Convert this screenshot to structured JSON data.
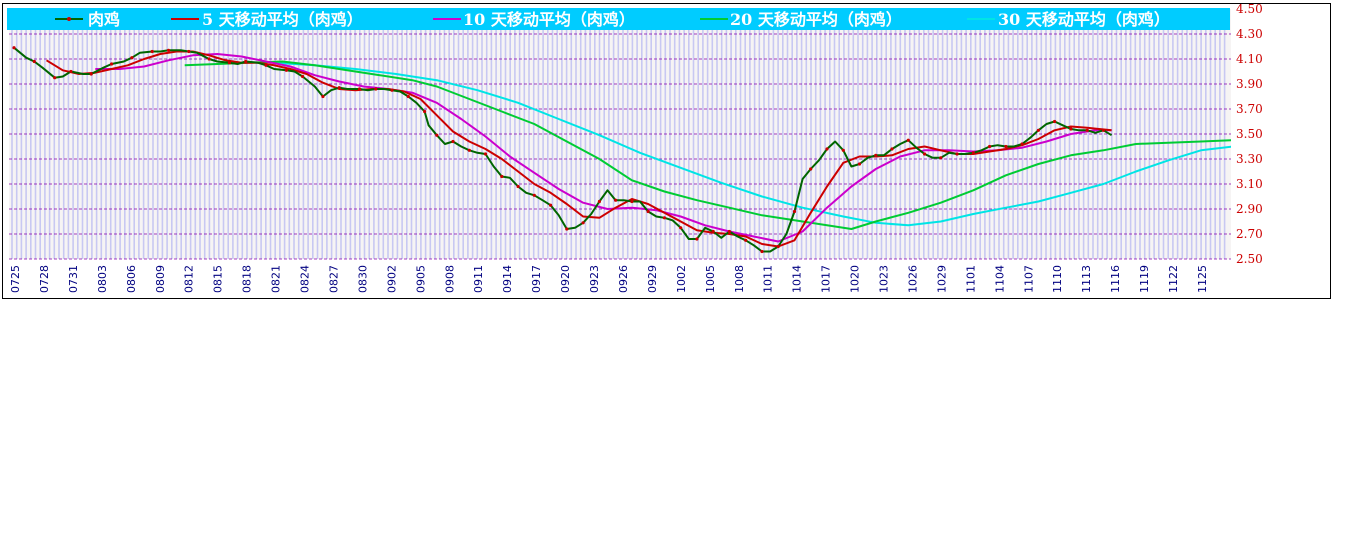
{
  "chart_data": {
    "type": "line",
    "title": "",
    "xlabel": "",
    "ylabel": "",
    "ylim": [
      2.5,
      4.5
    ],
    "yticks": [
      "4.50",
      "4.30",
      "4.10",
      "3.90",
      "3.70",
      "3.50",
      "3.30",
      "3.10",
      "2.90",
      "2.70",
      "2.50"
    ],
    "xticks": [
      "0725",
      "0728",
      "0731",
      "0803",
      "0806",
      "0809",
      "0812",
      "0815",
      "0818",
      "0821",
      "0824",
      "0827",
      "0830",
      "0902",
      "0905",
      "0908",
      "0911",
      "0914",
      "0917",
      "0920",
      "0923",
      "0926",
      "0929",
      "1002",
      "1005",
      "1008",
      "1011",
      "1014",
      "1017",
      "1020",
      "1023",
      "1026",
      "1029",
      "1101",
      "1104",
      "1107",
      "1110",
      "1113",
      "1116",
      "1119",
      "1122",
      "1125"
    ],
    "legend_placement": "top",
    "grid": true,
    "colors": {
      "legend_bg": "#00ccff",
      "grid": "#8800aa",
      "bars": "#c8c8f2",
      "ytick": "#cc0000",
      "xtick": "#000080",
      "price": "#006600",
      "marker": "#cc0000"
    },
    "series": [
      {
        "name": "肉鸡",
        "color": "#006600",
        "marker": true,
        "points": [
          [
            0,
            4.19
          ],
          [
            3,
            4.11
          ],
          [
            5,
            4.08
          ],
          [
            7,
            4.03
          ],
          [
            10,
            3.95
          ],
          [
            12,
            3.96
          ],
          [
            14,
            4.0
          ],
          [
            17,
            3.98
          ],
          [
            19,
            3.98
          ],
          [
            22,
            4.03
          ],
          [
            24,
            4.06
          ],
          [
            27,
            4.08
          ],
          [
            29,
            4.11
          ],
          [
            31,
            4.15
          ],
          [
            34,
            4.16
          ],
          [
            36,
            4.16
          ],
          [
            38,
            4.17
          ],
          [
            41,
            4.17
          ],
          [
            43,
            4.16
          ],
          [
            45,
            4.15
          ],
          [
            48,
            4.1
          ],
          [
            50,
            4.08
          ],
          [
            53,
            4.07
          ],
          [
            55,
            4.06
          ],
          [
            57,
            4.08
          ],
          [
            60,
            4.07
          ],
          [
            62,
            4.05
          ],
          [
            64,
            4.02
          ],
          [
            67,
            4.01
          ],
          [
            69,
            4.0
          ],
          [
            71,
            3.96
          ],
          [
            74,
            3.88
          ],
          [
            76,
            3.8
          ],
          [
            78,
            3.85
          ],
          [
            80,
            3.87
          ],
          [
            82,
            3.86
          ],
          [
            85,
            3.86
          ],
          [
            87,
            3.85
          ],
          [
            89,
            3.86
          ],
          [
            91,
            3.86
          ],
          [
            93,
            3.85
          ],
          [
            95,
            3.84
          ],
          [
            97,
            3.8
          ],
          [
            99,
            3.75
          ],
          [
            101,
            3.68
          ],
          [
            102,
            3.57
          ],
          [
            104,
            3.49
          ],
          [
            106,
            3.42
          ],
          [
            108,
            3.44
          ],
          [
            110,
            3.4
          ],
          [
            112,
            3.37
          ],
          [
            114,
            3.35
          ],
          [
            116,
            3.34
          ],
          [
            118,
            3.24
          ],
          [
            120,
            3.16
          ],
          [
            122,
            3.15
          ],
          [
            124,
            3.08
          ],
          [
            126,
            3.03
          ],
          [
            128,
            3.01
          ],
          [
            130,
            2.97
          ],
          [
            132,
            2.93
          ],
          [
            134,
            2.85
          ],
          [
            136,
            2.74
          ],
          [
            138,
            2.75
          ],
          [
            140,
            2.79
          ],
          [
            142,
            2.86
          ],
          [
            144,
            2.96
          ],
          [
            146,
            3.05
          ],
          [
            148,
            2.97
          ],
          [
            150,
            2.97
          ],
          [
            152,
            2.96
          ],
          [
            154,
            2.96
          ],
          [
            156,
            2.88
          ],
          [
            158,
            2.84
          ],
          [
            160,
            2.83
          ],
          [
            162,
            2.81
          ],
          [
            164,
            2.75
          ],
          [
            166,
            2.66
          ],
          [
            168,
            2.66
          ],
          [
            170,
            2.75
          ],
          [
            172,
            2.72
          ],
          [
            174,
            2.67
          ],
          [
            176,
            2.72
          ],
          [
            178,
            2.68
          ],
          [
            180,
            2.65
          ],
          [
            182,
            2.61
          ],
          [
            184,
            2.56
          ],
          [
            186,
            2.56
          ],
          [
            188,
            2.6
          ],
          [
            190,
            2.7
          ],
          [
            192,
            2.88
          ],
          [
            194,
            3.14
          ],
          [
            196,
            3.22
          ],
          [
            198,
            3.29
          ],
          [
            200,
            3.38
          ],
          [
            202,
            3.44
          ],
          [
            204,
            3.37
          ],
          [
            206,
            3.24
          ],
          [
            208,
            3.26
          ],
          [
            210,
            3.31
          ],
          [
            212,
            3.33
          ],
          [
            214,
            3.33
          ],
          [
            216,
            3.38
          ],
          [
            218,
            3.42
          ],
          [
            220,
            3.45
          ],
          [
            222,
            3.39
          ],
          [
            224,
            3.34
          ],
          [
            226,
            3.31
          ],
          [
            228,
            3.31
          ],
          [
            230,
            3.35
          ],
          [
            232,
            3.34
          ],
          [
            234,
            3.34
          ],
          [
            236,
            3.35
          ],
          [
            238,
            3.37
          ],
          [
            240,
            3.4
          ],
          [
            242,
            3.41
          ],
          [
            244,
            3.4
          ],
          [
            246,
            3.4
          ],
          [
            248,
            3.42
          ],
          [
            250,
            3.47
          ],
          [
            252,
            3.53
          ],
          [
            254,
            3.58
          ],
          [
            256,
            3.6
          ],
          [
            258,
            3.57
          ],
          [
            260,
            3.54
          ],
          [
            262,
            3.53
          ],
          [
            264,
            3.53
          ],
          [
            266,
            3.51
          ],
          [
            268,
            3.53
          ],
          [
            270,
            3.49
          ]
        ]
      },
      {
        "name": "5 天移动平均（肉鸡）",
        "color": "#cc0000",
        "marker": false,
        "points": [
          [
            8,
            4.09
          ],
          [
            12,
            4.01
          ],
          [
            16,
            3.98
          ],
          [
            20,
            3.99
          ],
          [
            24,
            4.02
          ],
          [
            28,
            4.05
          ],
          [
            32,
            4.1
          ],
          [
            36,
            4.14
          ],
          [
            40,
            4.16
          ],
          [
            44,
            4.16
          ],
          [
            48,
            4.13
          ],
          [
            52,
            4.09
          ],
          [
            56,
            4.07
          ],
          [
            60,
            4.07
          ],
          [
            64,
            4.05
          ],
          [
            68,
            4.02
          ],
          [
            72,
            3.98
          ],
          [
            76,
            3.91
          ],
          [
            80,
            3.86
          ],
          [
            84,
            3.85
          ],
          [
            88,
            3.86
          ],
          [
            92,
            3.86
          ],
          [
            96,
            3.84
          ],
          [
            100,
            3.78
          ],
          [
            104,
            3.65
          ],
          [
            108,
            3.52
          ],
          [
            112,
            3.44
          ],
          [
            116,
            3.38
          ],
          [
            120,
            3.3
          ],
          [
            124,
            3.2
          ],
          [
            128,
            3.1
          ],
          [
            132,
            3.03
          ],
          [
            136,
            2.94
          ],
          [
            140,
            2.84
          ],
          [
            144,
            2.83
          ],
          [
            148,
            2.91
          ],
          [
            152,
            2.98
          ],
          [
            156,
            2.94
          ],
          [
            160,
            2.87
          ],
          [
            164,
            2.8
          ],
          [
            168,
            2.73
          ],
          [
            172,
            2.71
          ],
          [
            176,
            2.7
          ],
          [
            180,
            2.68
          ],
          [
            184,
            2.62
          ],
          [
            188,
            2.6
          ],
          [
            192,
            2.65
          ],
          [
            196,
            2.87
          ],
          [
            200,
            3.08
          ],
          [
            204,
            3.27
          ],
          [
            208,
            3.32
          ],
          [
            212,
            3.32
          ],
          [
            216,
            3.33
          ],
          [
            220,
            3.38
          ],
          [
            224,
            3.4
          ],
          [
            228,
            3.37
          ],
          [
            232,
            3.34
          ],
          [
            236,
            3.34
          ],
          [
            240,
            3.36
          ],
          [
            244,
            3.38
          ],
          [
            248,
            3.41
          ],
          [
            252,
            3.46
          ],
          [
            256,
            3.53
          ],
          [
            260,
            3.56
          ],
          [
            264,
            3.55
          ],
          [
            270,
            3.53
          ]
        ]
      },
      {
        "name": "10 天移动平均（肉鸡）",
        "color": "#cc00cc",
        "marker": false,
        "points": [
          [
            20,
            4.02
          ],
          [
            26,
            4.02
          ],
          [
            32,
            4.04
          ],
          [
            38,
            4.09
          ],
          [
            44,
            4.13
          ],
          [
            50,
            4.14
          ],
          [
            56,
            4.12
          ],
          [
            62,
            4.08
          ],
          [
            68,
            4.04
          ],
          [
            74,
            3.97
          ],
          [
            80,
            3.92
          ],
          [
            86,
            3.88
          ],
          [
            92,
            3.86
          ],
          [
            98,
            3.83
          ],
          [
            104,
            3.75
          ],
          [
            110,
            3.62
          ],
          [
            116,
            3.48
          ],
          [
            122,
            3.32
          ],
          [
            128,
            3.19
          ],
          [
            134,
            3.06
          ],
          [
            140,
            2.95
          ],
          [
            146,
            2.9
          ],
          [
            152,
            2.91
          ],
          [
            158,
            2.89
          ],
          [
            164,
            2.84
          ],
          [
            170,
            2.77
          ],
          [
            176,
            2.72
          ],
          [
            182,
            2.68
          ],
          [
            188,
            2.64
          ],
          [
            194,
            2.72
          ],
          [
            200,
            2.91
          ],
          [
            206,
            3.08
          ],
          [
            212,
            3.22
          ],
          [
            218,
            3.32
          ],
          [
            224,
            3.37
          ],
          [
            230,
            3.37
          ],
          [
            236,
            3.36
          ],
          [
            242,
            3.37
          ],
          [
            248,
            3.39
          ],
          [
            254,
            3.44
          ],
          [
            260,
            3.5
          ],
          [
            266,
            3.53
          ],
          [
            270,
            3.53
          ]
        ]
      },
      {
        "name": "20 天移动平均（肉鸡）",
        "color": "#00cc33",
        "marker": false,
        "points": [
          [
            42,
            4.05
          ],
          [
            50,
            4.06
          ],
          [
            58,
            4.07
          ],
          [
            66,
            4.08
          ],
          [
            74,
            4.05
          ],
          [
            82,
            4.01
          ],
          [
            90,
            3.97
          ],
          [
            98,
            3.93
          ],
          [
            104,
            3.88
          ],
          [
            112,
            3.78
          ],
          [
            120,
            3.68
          ],
          [
            128,
            3.58
          ],
          [
            136,
            3.44
          ],
          [
            144,
            3.3
          ],
          [
            152,
            3.13
          ],
          [
            160,
            3.04
          ],
          [
            168,
            2.97
          ],
          [
            176,
            2.91
          ],
          [
            184,
            2.85
          ],
          [
            192,
            2.81
          ],
          [
            200,
            2.77
          ],
          [
            206,
            2.74
          ],
          [
            212,
            2.8
          ],
          [
            220,
            2.87
          ],
          [
            228,
            2.95
          ],
          [
            236,
            3.05
          ],
          [
            244,
            3.17
          ],
          [
            252,
            3.26
          ],
          [
            260,
            3.33
          ],
          [
            268,
            3.37
          ],
          [
            276,
            3.42
          ],
          [
            284,
            3.43
          ],
          [
            292,
            3.44
          ],
          [
            300,
            3.45
          ]
        ]
      },
      {
        "name": "30 天移动平均（肉鸡）",
        "color": "#00e5e5",
        "marker": false,
        "points": [
          [
            64,
            4.07
          ],
          [
            74,
            4.05
          ],
          [
            84,
            4.02
          ],
          [
            94,
            3.98
          ],
          [
            104,
            3.93
          ],
          [
            114,
            3.85
          ],
          [
            124,
            3.75
          ],
          [
            134,
            3.62
          ],
          [
            144,
            3.49
          ],
          [
            154,
            3.35
          ],
          [
            164,
            3.23
          ],
          [
            174,
            3.11
          ],
          [
            184,
            3.0
          ],
          [
            194,
            2.91
          ],
          [
            204,
            2.84
          ],
          [
            212,
            2.79
          ],
          [
            220,
            2.77
          ],
          [
            228,
            2.8
          ],
          [
            236,
            2.86
          ],
          [
            244,
            2.91
          ],
          [
            252,
            2.96
          ],
          [
            260,
            3.03
          ],
          [
            268,
            3.1
          ],
          [
            276,
            3.2
          ],
          [
            284,
            3.29
          ],
          [
            292,
            3.37
          ],
          [
            300,
            3.4
          ]
        ]
      }
    ]
  }
}
